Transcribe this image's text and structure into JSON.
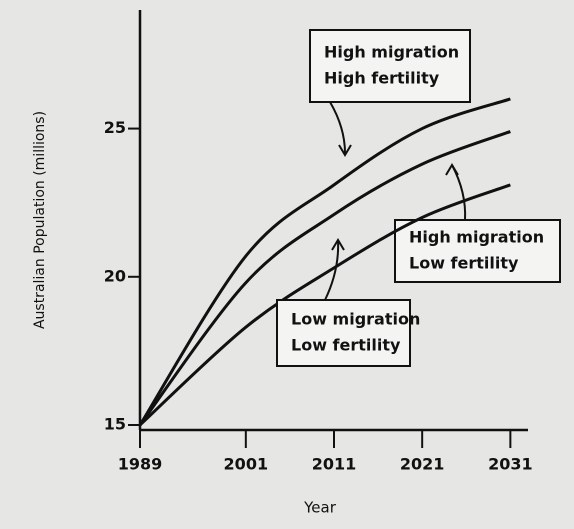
{
  "chart_data": {
    "type": "line",
    "x_label": "Year",
    "y_label": "Australian Population (millions)",
    "x": [
      1989,
      2001,
      2011,
      2021,
      2031
    ],
    "xlim": [
      1989,
      2033
    ],
    "xticks": [
      1989,
      2001,
      2011,
      2021,
      2031
    ],
    "ylim": [
      15,
      29
    ],
    "yticks": [
      15,
      20,
      25
    ],
    "series": [
      {
        "name_lines": [
          "High migration",
          "High fertility"
        ],
        "color": "#111111",
        "values": [
          15,
          20.7,
          23.1,
          25.0,
          26.0
        ]
      },
      {
        "name_lines": [
          "High migration",
          "Low fertility"
        ],
        "color": "#111111",
        "values": [
          15,
          19.8,
          22.1,
          23.8,
          24.9
        ]
      },
      {
        "name_lines": [
          "Low migration",
          "Low fertility"
        ],
        "color": "#111111",
        "values": [
          15,
          18.3,
          20.3,
          22.0,
          23.1
        ]
      }
    ]
  }
}
